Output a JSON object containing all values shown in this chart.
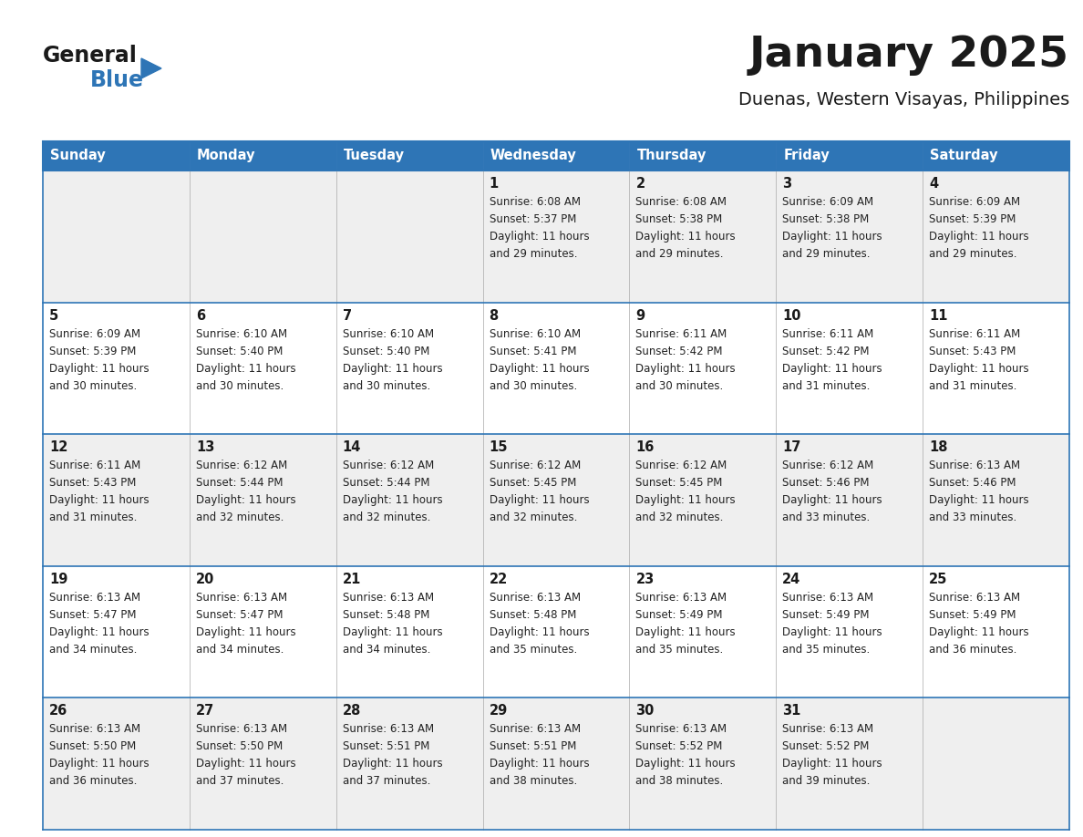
{
  "title": "January 2025",
  "subtitle": "Duenas, Western Visayas, Philippines",
  "header_bg": "#2E75B6",
  "header_text": "#FFFFFF",
  "row_bg_even": "#EFEFEF",
  "row_bg_odd": "#FFFFFF",
  "border_color": "#2E75B6",
  "cell_border": "#AAAAAA",
  "day_names": [
    "Sunday",
    "Monday",
    "Tuesday",
    "Wednesday",
    "Thursday",
    "Friday",
    "Saturday"
  ],
  "logo_color1": "#1a1a1a",
  "logo_color2": "#2E75B6",
  "weeks": [
    [
      {
        "day": "",
        "sunrise": "",
        "sunset": "",
        "daylight": ""
      },
      {
        "day": "",
        "sunrise": "",
        "sunset": "",
        "daylight": ""
      },
      {
        "day": "",
        "sunrise": "",
        "sunset": "",
        "daylight": ""
      },
      {
        "day": "1",
        "sunrise": "6:08 AM",
        "sunset": "5:37 PM",
        "daylight": "11 hours and 29 minutes."
      },
      {
        "day": "2",
        "sunrise": "6:08 AM",
        "sunset": "5:38 PM",
        "daylight": "11 hours and 29 minutes."
      },
      {
        "day": "3",
        "sunrise": "6:09 AM",
        "sunset": "5:38 PM",
        "daylight": "11 hours and 29 minutes."
      },
      {
        "day": "4",
        "sunrise": "6:09 AM",
        "sunset": "5:39 PM",
        "daylight": "11 hours and 29 minutes."
      }
    ],
    [
      {
        "day": "5",
        "sunrise": "6:09 AM",
        "sunset": "5:39 PM",
        "daylight": "11 hours and 30 minutes."
      },
      {
        "day": "6",
        "sunrise": "6:10 AM",
        "sunset": "5:40 PM",
        "daylight": "11 hours and 30 minutes."
      },
      {
        "day": "7",
        "sunrise": "6:10 AM",
        "sunset": "5:40 PM",
        "daylight": "11 hours and 30 minutes."
      },
      {
        "day": "8",
        "sunrise": "6:10 AM",
        "sunset": "5:41 PM",
        "daylight": "11 hours and 30 minutes."
      },
      {
        "day": "9",
        "sunrise": "6:11 AM",
        "sunset": "5:42 PM",
        "daylight": "11 hours and 30 minutes."
      },
      {
        "day": "10",
        "sunrise": "6:11 AM",
        "sunset": "5:42 PM",
        "daylight": "11 hours and 31 minutes."
      },
      {
        "day": "11",
        "sunrise": "6:11 AM",
        "sunset": "5:43 PM",
        "daylight": "11 hours and 31 minutes."
      }
    ],
    [
      {
        "day": "12",
        "sunrise": "6:11 AM",
        "sunset": "5:43 PM",
        "daylight": "11 hours and 31 minutes."
      },
      {
        "day": "13",
        "sunrise": "6:12 AM",
        "sunset": "5:44 PM",
        "daylight": "11 hours and 32 minutes."
      },
      {
        "day": "14",
        "sunrise": "6:12 AM",
        "sunset": "5:44 PM",
        "daylight": "11 hours and 32 minutes."
      },
      {
        "day": "15",
        "sunrise": "6:12 AM",
        "sunset": "5:45 PM",
        "daylight": "11 hours and 32 minutes."
      },
      {
        "day": "16",
        "sunrise": "6:12 AM",
        "sunset": "5:45 PM",
        "daylight": "11 hours and 32 minutes."
      },
      {
        "day": "17",
        "sunrise": "6:12 AM",
        "sunset": "5:46 PM",
        "daylight": "11 hours and 33 minutes."
      },
      {
        "day": "18",
        "sunrise": "6:13 AM",
        "sunset": "5:46 PM",
        "daylight": "11 hours and 33 minutes."
      }
    ],
    [
      {
        "day": "19",
        "sunrise": "6:13 AM",
        "sunset": "5:47 PM",
        "daylight": "11 hours and 34 minutes."
      },
      {
        "day": "20",
        "sunrise": "6:13 AM",
        "sunset": "5:47 PM",
        "daylight": "11 hours and 34 minutes."
      },
      {
        "day": "21",
        "sunrise": "6:13 AM",
        "sunset": "5:48 PM",
        "daylight": "11 hours and 34 minutes."
      },
      {
        "day": "22",
        "sunrise": "6:13 AM",
        "sunset": "5:48 PM",
        "daylight": "11 hours and 35 minutes."
      },
      {
        "day": "23",
        "sunrise": "6:13 AM",
        "sunset": "5:49 PM",
        "daylight": "11 hours and 35 minutes."
      },
      {
        "day": "24",
        "sunrise": "6:13 AM",
        "sunset": "5:49 PM",
        "daylight": "11 hours and 35 minutes."
      },
      {
        "day": "25",
        "sunrise": "6:13 AM",
        "sunset": "5:49 PM",
        "daylight": "11 hours and 36 minutes."
      }
    ],
    [
      {
        "day": "26",
        "sunrise": "6:13 AM",
        "sunset": "5:50 PM",
        "daylight": "11 hours and 36 minutes."
      },
      {
        "day": "27",
        "sunrise": "6:13 AM",
        "sunset": "5:50 PM",
        "daylight": "11 hours and 37 minutes."
      },
      {
        "day": "28",
        "sunrise": "6:13 AM",
        "sunset": "5:51 PM",
        "daylight": "11 hours and 37 minutes."
      },
      {
        "day": "29",
        "sunrise": "6:13 AM",
        "sunset": "5:51 PM",
        "daylight": "11 hours and 38 minutes."
      },
      {
        "day": "30",
        "sunrise": "6:13 AM",
        "sunset": "5:52 PM",
        "daylight": "11 hours and 38 minutes."
      },
      {
        "day": "31",
        "sunrise": "6:13 AM",
        "sunset": "5:52 PM",
        "daylight": "11 hours and 39 minutes."
      },
      {
        "day": "",
        "sunrise": "",
        "sunset": "",
        "daylight": ""
      }
    ]
  ]
}
